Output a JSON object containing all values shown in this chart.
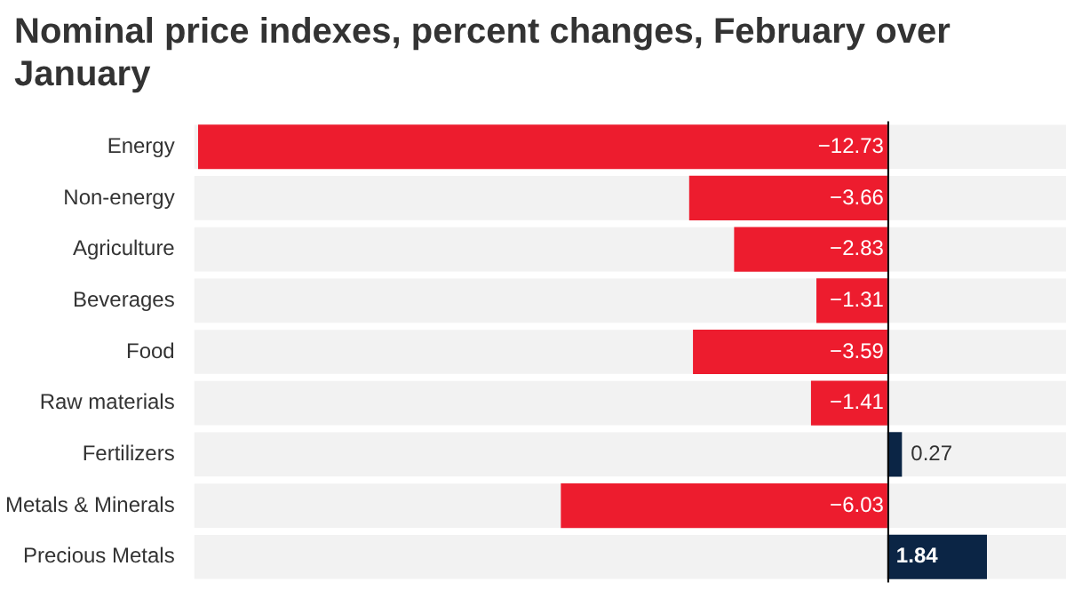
{
  "chart_data": {
    "type": "bar",
    "orientation": "horizontal",
    "title": "Nominal price indexes, percent changes, February over January",
    "categories": [
      "Energy",
      "Non-energy",
      "Agriculture",
      "Beverages",
      "Food",
      "Raw materials",
      "Fertilizers",
      "Metals & Minerals",
      "Precious Metals"
    ],
    "values": [
      -12.73,
      -3.66,
      -2.83,
      -1.31,
      -3.59,
      -1.41,
      0.27,
      -6.03,
      1.84
    ],
    "colors": [
      "#ed1c2e",
      "#ed1c2e",
      "#ed1c2e",
      "#ed1c2e",
      "#ed1c2e",
      "#ed1c2e",
      "#0b2545",
      "#ed1c2e",
      "#0b2545"
    ],
    "xlim": [
      -12.8,
      3.3
    ],
    "tick_labels": "y",
    "legend": false,
    "data_labels": true
  }
}
